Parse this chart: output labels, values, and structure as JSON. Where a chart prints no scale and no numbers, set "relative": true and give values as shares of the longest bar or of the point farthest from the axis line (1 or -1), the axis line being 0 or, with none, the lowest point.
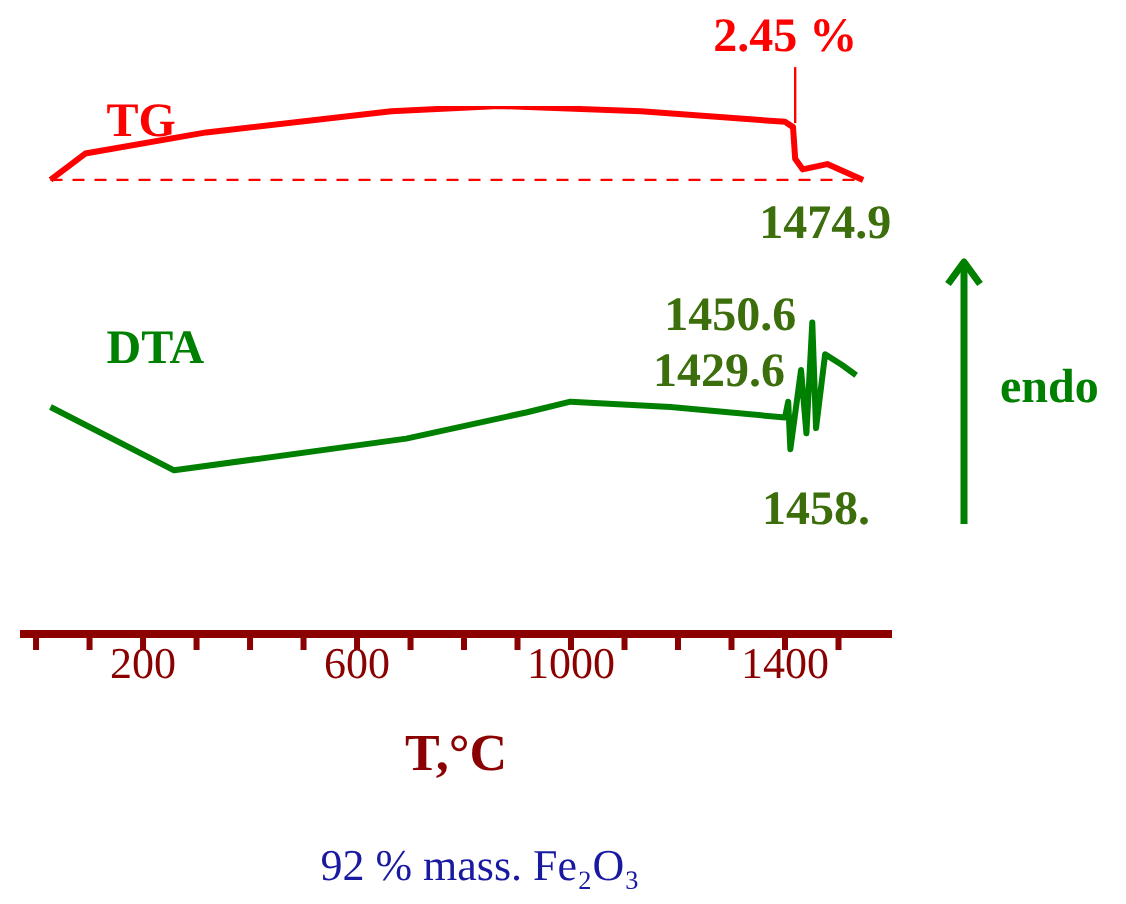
{
  "chart_data": {
    "type": "line",
    "relative": true,
    "xlabel": "T,°C",
    "xlim": [
      -30,
      1600
    ],
    "xticks": [
      {
        "value": 0,
        "label": null
      },
      {
        "value": 100,
        "label": null
      },
      200,
      {
        "value": 300,
        "label": null
      },
      {
        "value": 400,
        "label": null
      },
      {
        "value": 500,
        "label": null
      },
      600,
      {
        "value": 700,
        "label": null
      },
      {
        "value": 800,
        "label": null
      },
      {
        "value": 900,
        "label": null
      },
      1000,
      {
        "value": 1100,
        "label": null
      },
      {
        "value": 1200,
        "label": null
      },
      {
        "value": 1300,
        "label": null
      },
      1400,
      {
        "value": 1500,
        "label": null
      }
    ],
    "series": [
      {
        "name": "TG",
        "color": "#ff0000",
        "x": [
          27,
          92,
          318,
          664,
          865,
          1131,
          1400,
          1415,
          1419,
          1433,
          1479,
          1546
        ],
        "values": [
          0.86,
          0.91,
          0.95,
          0.99,
          1.0,
          0.99,
          0.97,
          0.96,
          0.9,
          0.88,
          0.89,
          0.86
        ]
      },
      {
        "name": "DTA",
        "color": "#008000",
        "x": [
          27,
          258,
          692,
          918,
          999,
          1186,
          1400,
          1406,
          1410,
          1430,
          1440,
          1451,
          1458,
          1475,
          1506,
          1533
        ],
        "values": [
          0.43,
          0.31,
          0.37,
          0.42,
          0.44,
          0.43,
          0.41,
          0.44,
          0.35,
          0.5,
          0.38,
          0.59,
          0.39,
          0.53,
          0.51,
          0.49
        ]
      }
    ],
    "ref_lines": [
      {
        "axis": "y",
        "value": 0.86,
        "color": "#ff0000",
        "line_style": "dashed"
      }
    ],
    "line_style": "solid",
    "annotations": [
      {
        "text": "2.45 %",
        "x": 1419,
        "y": 0.96
      },
      {
        "text": "1474.9",
        "x": 1475,
        "y": 0.53
      },
      {
        "text": "1450.6",
        "x": 1451,
        "y": 0.59
      },
      {
        "text": "1429.6",
        "x": 1430,
        "y": 0.5
      },
      {
        "text": "1458.",
        "x": 1458,
        "y": 0.39
      },
      "endo",
      "92 % mass. Fe₂O₃"
    ]
  }
}
